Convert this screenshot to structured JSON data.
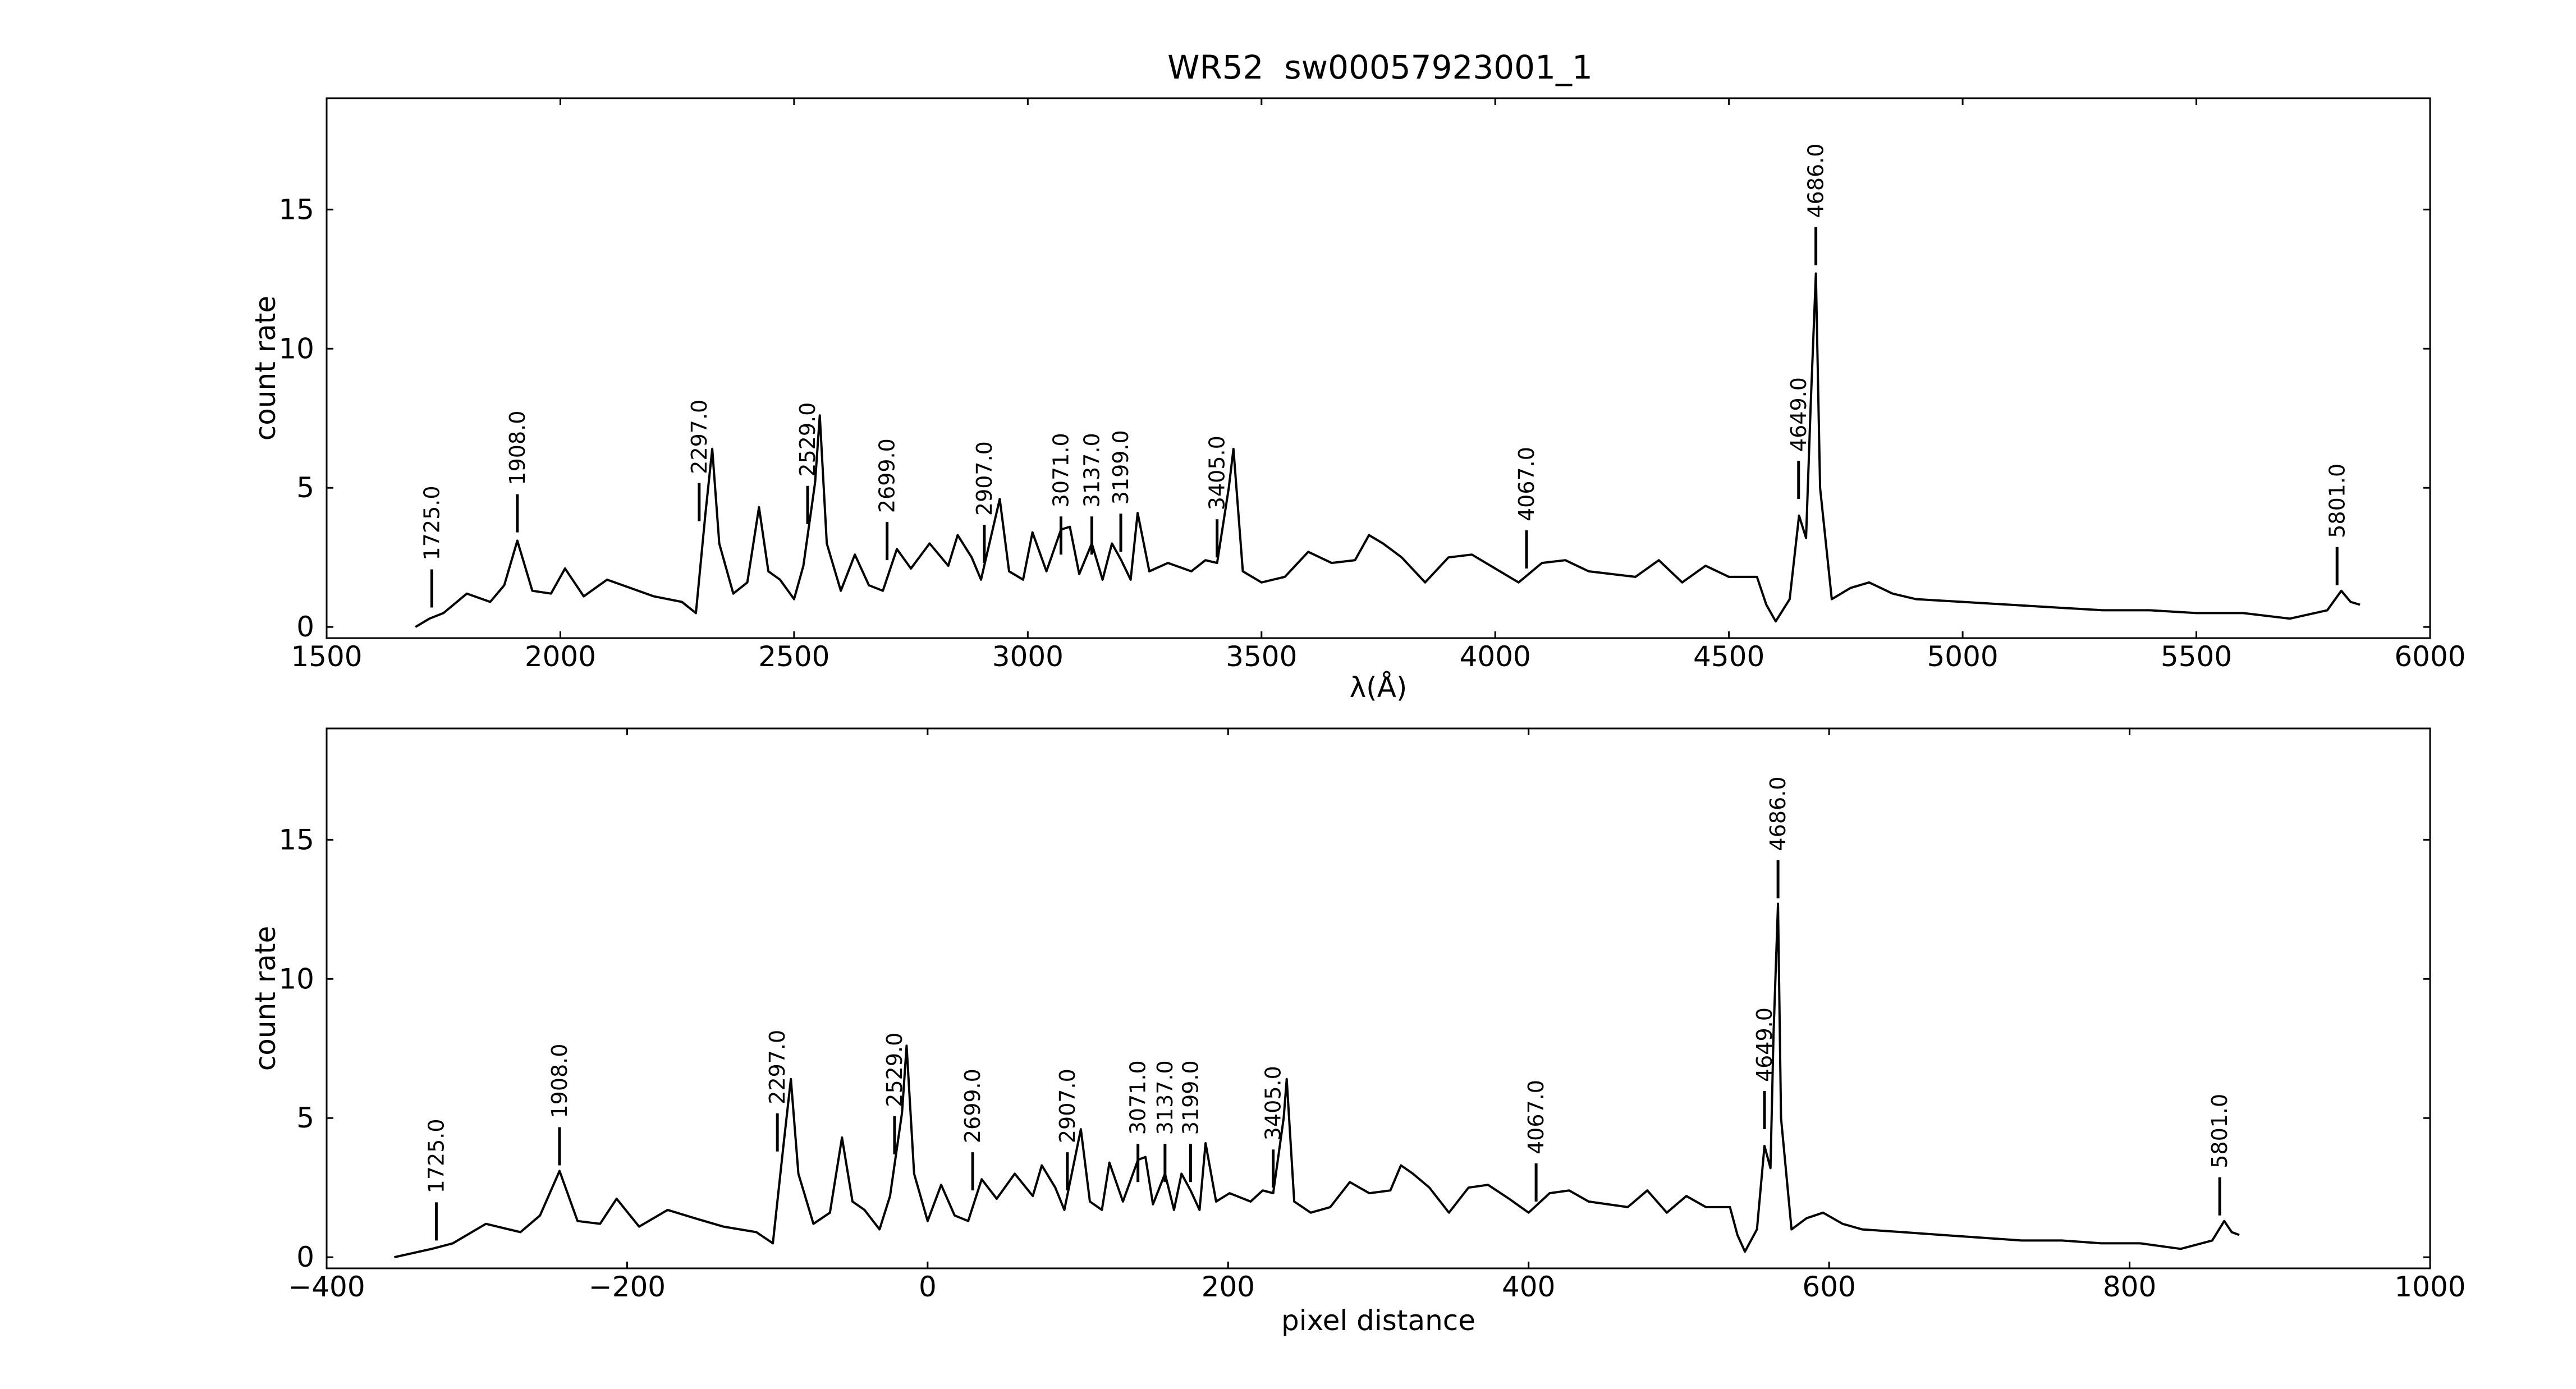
{
  "chart_data": [
    {
      "type": "line",
      "title": "WR52  sw00057923001_1",
      "xlabel": "λ(Å)",
      "ylabel": "count rate",
      "color": "#000000",
      "xlim": [
        1500,
        6000
      ],
      "ylim": [
        -0.4,
        19
      ],
      "xticks": [
        1500,
        2000,
        2500,
        3000,
        3500,
        4000,
        4500,
        5000,
        5500,
        6000
      ],
      "yticks": [
        0,
        5,
        10,
        15
      ],
      "x": [
        1690,
        1720,
        1750,
        1800,
        1850,
        1880,
        1908,
        1940,
        1980,
        2010,
        2050,
        2100,
        2150,
        2200,
        2260,
        2290,
        2310,
        2325,
        2340,
        2370,
        2400,
        2425,
        2445,
        2470,
        2500,
        2520,
        2545,
        2555,
        2570,
        2600,
        2630,
        2660,
        2690,
        2720,
        2750,
        2790,
        2830,
        2850,
        2880,
        2900,
        2940,
        2960,
        2990,
        3010,
        3040,
        3071,
        3090,
        3110,
        3137,
        3160,
        3180,
        3200,
        3220,
        3235,
        3260,
        3300,
        3350,
        3380,
        3405,
        3430,
        3440,
        3460,
        3500,
        3550,
        3600,
        3650,
        3700,
        3730,
        3760,
        3800,
        3850,
        3900,
        3950,
        4000,
        4050,
        4100,
        4150,
        4200,
        4300,
        4350,
        4400,
        4450,
        4500,
        4560,
        4580,
        4600,
        4630,
        4650,
        4665,
        4675,
        4686,
        4695,
        4720,
        4760,
        4800,
        4850,
        4900,
        5000,
        5100,
        5200,
        5300,
        5400,
        5500,
        5600,
        5700,
        5780,
        5810,
        5830,
        5850
      ],
      "values": [
        0,
        0.3,
        0.5,
        1.2,
        0.9,
        1.5,
        3.1,
        1.3,
        1.2,
        2.1,
        1.1,
        1.7,
        1.4,
        1.1,
        0.9,
        0.5,
        4.0,
        6.4,
        3.0,
        1.2,
        1.6,
        4.3,
        2.0,
        1.7,
        1.0,
        2.2,
        5.2,
        7.6,
        3.0,
        1.3,
        2.6,
        1.5,
        1.3,
        2.8,
        2.1,
        3.0,
        2.2,
        3.3,
        2.5,
        1.7,
        4.6,
        2.0,
        1.7,
        3.4,
        2.0,
        3.5,
        3.6,
        1.9,
        3.0,
        1.7,
        3.0,
        2.4,
        1.7,
        4.1,
        2.0,
        2.3,
        2.0,
        2.4,
        2.3,
        5.0,
        6.4,
        2.0,
        1.6,
        1.8,
        2.7,
        2.3,
        2.4,
        3.3,
        3.0,
        2.5,
        1.6,
        2.5,
        2.6,
        2.1,
        1.6,
        2.3,
        2.4,
        2.0,
        1.8,
        2.4,
        1.6,
        2.2,
        1.8,
        1.8,
        0.8,
        0.2,
        1.0,
        4.0,
        3.2,
        8.0,
        12.7,
        5.0,
        1.0,
        1.4,
        1.6,
        1.2,
        1.0,
        0.9,
        0.8,
        0.7,
        0.6,
        0.6,
        0.5,
        0.5,
        0.3,
        0.6,
        1.3,
        0.9,
        0.8
      ],
      "annotations": [
        {
          "label": "1725.0",
          "x": 1725,
          "y": 0.7
        },
        {
          "label": "1908.0",
          "x": 1908,
          "y": 3.4
        },
        {
          "label": "2297.0",
          "x": 2297,
          "y": 3.8
        },
        {
          "label": "2529.0",
          "x": 2529,
          "y": 3.7
        },
        {
          "label": "2699.0",
          "x": 2699,
          "y": 2.4
        },
        {
          "label": "2907.0",
          "x": 2907,
          "y": 2.3
        },
        {
          "label": "3071.0",
          "x": 3071,
          "y": 2.6
        },
        {
          "label": "3137.0",
          "x": 3137,
          "y": 2.6
        },
        {
          "label": "3199.0",
          "x": 3199,
          "y": 2.7
        },
        {
          "label": "3405.0",
          "x": 3405,
          "y": 2.5
        },
        {
          "label": "4067.0",
          "x": 4067,
          "y": 2.1
        },
        {
          "label": "4649.0",
          "x": 4649,
          "y": 4.6
        },
        {
          "label": "4686.0",
          "x": 4686,
          "y": 13.0
        },
        {
          "label": "5801.0",
          "x": 5801,
          "y": 1.5
        }
      ]
    },
    {
      "type": "line",
      "xlabel": "pixel distance",
      "ylabel": "count rate",
      "color": "#000000",
      "xlim": [
        -400,
        1000
      ],
      "ylim": [
        -0.4,
        19
      ],
      "xticks": [
        {
          "value": -400,
          "label": "−400"
        },
        {
          "value": -200,
          "label": "−200"
        },
        0,
        200,
        400,
        600,
        800,
        1000
      ],
      "yticks": [
        0,
        5,
        10,
        15
      ],
      "x": [
        -355,
        -330,
        -316,
        -294,
        -271,
        -258,
        -245,
        -233,
        -218,
        -207,
        -192,
        -173,
        -155,
        -136,
        -114,
        -103,
        -96,
        -91,
        -86,
        -76,
        -65,
        -57,
        -50,
        -42,
        -32,
        -25,
        -17,
        -14,
        -9,
        0,
        9,
        18,
        27,
        36,
        46,
        58,
        70,
        76,
        85,
        91,
        102,
        108,
        116,
        121,
        130,
        140,
        145,
        150,
        158,
        164,
        169,
        175,
        181,
        185,
        192,
        201,
        215,
        223,
        230,
        237,
        239,
        244,
        255,
        268,
        281,
        294,
        308,
        315,
        323,
        334,
        347,
        360,
        373,
        387,
        400,
        414,
        427,
        440,
        466,
        479,
        492,
        505,
        518,
        534,
        539,
        544,
        552,
        557,
        561,
        563,
        566,
        568,
        575,
        585,
        596,
        609,
        622,
        649,
        675,
        702,
        728,
        755,
        781,
        807,
        834,
        855,
        863,
        868,
        873
      ],
      "values": [
        0,
        0.3,
        0.5,
        1.2,
        0.9,
        1.5,
        3.1,
        1.3,
        1.2,
        2.1,
        1.1,
        1.7,
        1.4,
        1.1,
        0.9,
        0.5,
        4.0,
        6.4,
        3.0,
        1.2,
        1.6,
        4.3,
        2.0,
        1.7,
        1.0,
        2.2,
        5.2,
        7.6,
        3.0,
        1.3,
        2.6,
        1.5,
        1.3,
        2.8,
        2.1,
        3.0,
        2.2,
        3.3,
        2.5,
        1.7,
        4.6,
        2.0,
        1.7,
        3.4,
        2.0,
        3.5,
        3.6,
        1.9,
        3.0,
        1.7,
        3.0,
        2.4,
        1.7,
        4.1,
        2.0,
        2.3,
        2.0,
        2.4,
        2.3,
        5.0,
        6.4,
        2.0,
        1.6,
        1.8,
        2.7,
        2.3,
        2.4,
        3.3,
        3.0,
        2.5,
        1.6,
        2.5,
        2.6,
        2.1,
        1.6,
        2.3,
        2.4,
        2.0,
        1.8,
        2.4,
        1.6,
        2.2,
        1.8,
        1.8,
        0.8,
        0.2,
        1.0,
        4.0,
        3.2,
        8.0,
        12.7,
        5.0,
        1.0,
        1.4,
        1.6,
        1.2,
        1.0,
        0.9,
        0.8,
        0.7,
        0.6,
        0.6,
        0.5,
        0.5,
        0.3,
        0.6,
        1.3,
        0.9,
        0.8
      ],
      "annotations": [
        {
          "label": "1725.0",
          "x": -327,
          "y": 0.6
        },
        {
          "label": "1908.0",
          "x": -245,
          "y": 3.3
        },
        {
          "label": "2297.0",
          "x": -100,
          "y": 3.8
        },
        {
          "label": "2529.0",
          "x": -22,
          "y": 3.7
        },
        {
          "label": "2699.0",
          "x": 30,
          "y": 2.4
        },
        {
          "label": "2907.0",
          "x": 93,
          "y": 2.4
        },
        {
          "label": "3071.0",
          "x": 140,
          "y": 2.7
        },
        {
          "label": "3137.0",
          "x": 158,
          "y": 2.7
        },
        {
          "label": "3199.0",
          "x": 175,
          "y": 2.7
        },
        {
          "label": "3405.0",
          "x": 230,
          "y": 2.5
        },
        {
          "label": "4067.0",
          "x": 405,
          "y": 2.0
        },
        {
          "label": "4649.0",
          "x": 557,
          "y": 4.6
        },
        {
          "label": "4686.0",
          "x": 566,
          "y": 12.9
        },
        {
          "label": "5801.0",
          "x": 860,
          "y": 1.5
        }
      ]
    }
  ]
}
